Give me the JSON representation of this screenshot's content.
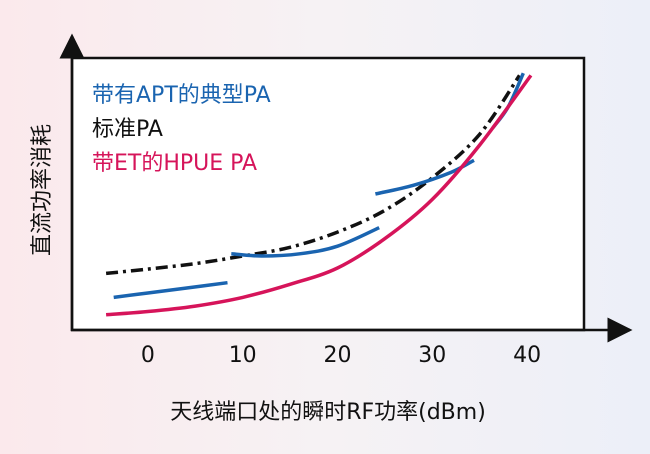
{
  "chart_data": {
    "type": "line",
    "xlabel": "天线端口处的瞬时RF功率(dBm)",
    "ylabel": "直流功率消耗",
    "xlim": [
      -8,
      46
    ],
    "ylim": [
      0,
      100
    ],
    "xticks": [
      0,
      10,
      20,
      30,
      40
    ],
    "tick_labels": [
      "0",
      "10",
      "20",
      "30",
      "40"
    ],
    "grid": false,
    "legend_position": "top-left",
    "series": [
      {
        "name": "带有APT的典型PA",
        "color": "#1a64b0",
        "style": "solid",
        "segments": [
          [
            [
              -3.6,
              12
            ],
            [
              0,
              13.6
            ],
            [
              4,
              15.4
            ],
            [
              8.4,
              17.4
            ]
          ],
          [
            [
              8.8,
              28
            ],
            [
              12,
              27.2
            ],
            [
              16,
              28
            ],
            [
              20,
              30.8
            ],
            [
              24.4,
              37.6
            ]
          ],
          [
            [
              24,
              50
            ],
            [
              28,
              53.2
            ],
            [
              32,
              58
            ],
            [
              34.4,
              62.4
            ]
          ],
          [
            [
              36.4,
              74.4
            ],
            [
              38,
              82
            ],
            [
              39.6,
              94.4
            ]
          ]
        ]
      },
      {
        "name": "标准PA",
        "color": "#111111",
        "style": "dashdot",
        "segments": [
          [
            [
              -4.4,
              20.8
            ],
            [
              0,
              22.4
            ],
            [
              5,
              24.4
            ],
            [
              10,
              27.2
            ],
            [
              15,
              30.4
            ],
            [
              20,
              36
            ],
            [
              25,
              44
            ],
            [
              30,
              56
            ],
            [
              35,
              72
            ],
            [
              39.2,
              93.6
            ]
          ]
        ]
      },
      {
        "name": "带ET的HPUE PA",
        "color": "#d6145a",
        "style": "solid",
        "segments": [
          [
            [
              -4.4,
              5.6
            ],
            [
              0,
              6.8
            ],
            [
              5,
              8.8
            ],
            [
              10,
              12
            ],
            [
              15,
              16.8
            ],
            [
              20,
              22.8
            ],
            [
              25,
              33.6
            ],
            [
              30,
              48
            ],
            [
              35,
              68
            ],
            [
              40.4,
              93.6
            ]
          ]
        ]
      }
    ]
  }
}
